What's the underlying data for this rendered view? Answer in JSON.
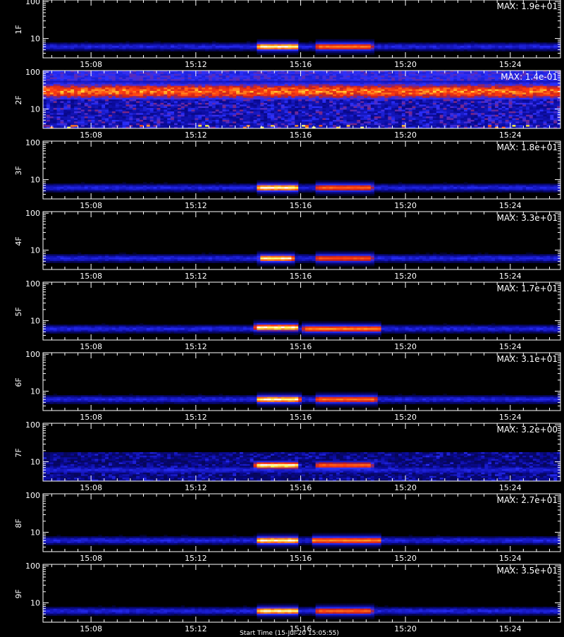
{
  "chart_data": {
    "type": "heatmap",
    "x_ticks": [
      "15:08",
      "15:12",
      "15:16",
      "15:20",
      "15:24"
    ],
    "x_range": [
      "15:06:10",
      "15:25:55"
    ],
    "y_scale": "log",
    "y_range": [
      3,
      110
    ],
    "y_ticks": [
      "10",
      "100"
    ],
    "colormap": [
      "#000000",
      "#0a0a9a",
      "#2a30ff",
      "#c02020",
      "#ff3a10",
      "#ff9020",
      "#ffff40",
      "#ffffff"
    ],
    "bottom_label": "Start Time (15-Jul-20 15:05:55)",
    "panels": [
      {
        "label": "1F",
        "max": "MAX: 1.9e+01",
        "kind": "burst",
        "events": [
          {
            "t0": "15:14:25",
            "t1": "15:15:50",
            "y": 6,
            "intensity": 1.0
          },
          {
            "t0": "15:16:40",
            "t1": "15:18:40",
            "y": 6,
            "intensity": 0.55
          }
        ]
      },
      {
        "label": "2F",
        "max": "MAX: 1.4e-01",
        "kind": "noise",
        "band_y": 30,
        "intensity": 0.9
      },
      {
        "label": "3F",
        "max": "MAX: 1.8e+01",
        "kind": "burst",
        "events": [
          {
            "t0": "15:14:25",
            "t1": "15:15:50",
            "y": 6,
            "intensity": 1.0
          },
          {
            "t0": "15:16:40",
            "t1": "15:18:40",
            "y": 6,
            "intensity": 0.5
          }
        ]
      },
      {
        "label": "4F",
        "max": "MAX: 3.3e+01",
        "kind": "burst",
        "events": [
          {
            "t0": "15:14:30",
            "t1": "15:15:40",
            "y": 6,
            "intensity": 0.95
          },
          {
            "t0": "15:16:40",
            "t1": "15:18:40",
            "y": 6,
            "intensity": 0.45
          }
        ]
      },
      {
        "label": "5F",
        "max": "MAX: 1.7e+01",
        "kind": "burst",
        "events": [
          {
            "t0": "15:14:20",
            "t1": "15:15:50",
            "y": 6.5,
            "intensity": 1.0
          },
          {
            "t0": "15:16:10",
            "t1": "15:19:00",
            "y": 6,
            "intensity": 0.6
          }
        ]
      },
      {
        "label": "6F",
        "max": "MAX: 3.1e+01",
        "kind": "burst",
        "events": [
          {
            "t0": "15:14:25",
            "t1": "15:15:55",
            "y": 6,
            "intensity": 1.0
          },
          {
            "t0": "15:16:40",
            "t1": "15:18:50",
            "y": 6,
            "intensity": 0.55
          }
        ]
      },
      {
        "label": "7F",
        "max": "MAX: 3.2e+00",
        "kind": "noisy-burst",
        "events": [
          {
            "t0": "15:14:20",
            "t1": "15:15:50",
            "y": 8,
            "intensity": 1.0
          },
          {
            "t0": "15:16:40",
            "t1": "15:18:40",
            "y": 8,
            "intensity": 0.5
          }
        ]
      },
      {
        "label": "8F",
        "max": "MAX: 2.7e+01",
        "kind": "burst",
        "events": [
          {
            "t0": "15:14:25",
            "t1": "15:15:50",
            "y": 6,
            "intensity": 1.0
          },
          {
            "t0": "15:16:30",
            "t1": "15:19:00",
            "y": 6,
            "intensity": 0.6
          }
        ]
      },
      {
        "label": "9F",
        "max": "MAX: 3.5e+01",
        "kind": "burst",
        "events": [
          {
            "t0": "15:14:25",
            "t1": "15:15:50",
            "y": 6,
            "intensity": 1.0
          },
          {
            "t0": "15:16:40",
            "t1": "15:18:40",
            "y": 6,
            "intensity": 0.5
          }
        ]
      }
    ]
  }
}
